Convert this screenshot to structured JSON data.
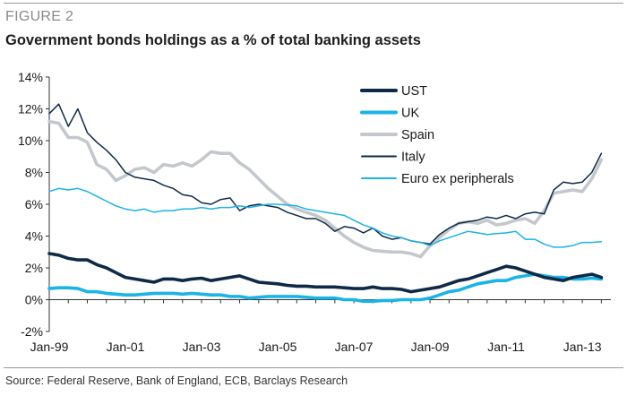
{
  "figure_label": "FIGURE 2",
  "source": "Source: Federal Reserve, Bank of England, ECB, Barclays Research",
  "colors": {
    "UST": "#0f2a47",
    "UK": "#1cb3e6",
    "Spain": "#c4c8cd",
    "Italy": "#0f2a47",
    "Euro ex peripherals": "#1cb3e6",
    "axis": "#333333"
  },
  "chart_data": {
    "type": "line",
    "title": "Government bonds holdings as a % of total banking assets",
    "xlabel": "",
    "ylabel": "",
    "xlim": [
      1999.0,
      2013.75
    ],
    "ylim": [
      -2,
      14
    ],
    "y_ticks": [
      -2,
      0,
      2,
      4,
      6,
      8,
      10,
      12,
      14
    ],
    "y_tick_labels": [
      "-2%",
      "0%",
      "2%",
      "4%",
      "6%",
      "8%",
      "10%",
      "12%",
      "14%"
    ],
    "x_ticks": [
      1999.0,
      2001.0,
      2003.0,
      2005.0,
      2007.0,
      2009.0,
      2011.0,
      2013.0
    ],
    "x_tick_labels": [
      "Jan-99",
      "Jan-01",
      "Jan-03",
      "Jan-05",
      "Jan-07",
      "Jan-09",
      "Jan-11",
      "Jan-13"
    ],
    "grid": false,
    "legend": "top-right",
    "series": [
      {
        "name": "Spain",
        "stroke_weight": "heavy",
        "points": [
          [
            1999.0,
            11.2
          ],
          [
            1999.25,
            11.1
          ],
          [
            1999.5,
            10.2
          ],
          [
            1999.75,
            10.2
          ],
          [
            2000.0,
            9.9
          ],
          [
            2000.25,
            8.5
          ],
          [
            2000.5,
            8.2
          ],
          [
            2000.75,
            7.5
          ],
          [
            2001.0,
            7.8
          ],
          [
            2001.25,
            8.2
          ],
          [
            2001.5,
            8.3
          ],
          [
            2001.75,
            8.0
          ],
          [
            2002.0,
            8.5
          ],
          [
            2002.25,
            8.4
          ],
          [
            2002.5,
            8.6
          ],
          [
            2002.75,
            8.4
          ],
          [
            2003.0,
            8.8
          ],
          [
            2003.25,
            9.3
          ],
          [
            2003.5,
            9.2
          ],
          [
            2003.75,
            9.2
          ],
          [
            2004.0,
            8.6
          ],
          [
            2004.25,
            8.2
          ],
          [
            2004.5,
            7.6
          ],
          [
            2004.75,
            7.0
          ],
          [
            2005.0,
            6.5
          ],
          [
            2005.25,
            6.0
          ],
          [
            2005.5,
            5.7
          ],
          [
            2005.75,
            5.5
          ],
          [
            2006.0,
            5.3
          ],
          [
            2006.25,
            5.0
          ],
          [
            2006.5,
            4.5
          ],
          [
            2006.75,
            4.0
          ],
          [
            2007.0,
            3.6
          ],
          [
            2007.25,
            3.3
          ],
          [
            2007.5,
            3.1
          ],
          [
            2007.75,
            3.05
          ],
          [
            2008.0,
            3.0
          ],
          [
            2008.25,
            3.0
          ],
          [
            2008.5,
            2.9
          ],
          [
            2008.75,
            2.7
          ],
          [
            2009.0,
            3.4
          ],
          [
            2009.25,
            3.9
          ],
          [
            2009.5,
            4.4
          ],
          [
            2009.75,
            4.8
          ],
          [
            2010.0,
            4.9
          ],
          [
            2010.25,
            4.8
          ],
          [
            2010.5,
            5.0
          ],
          [
            2010.75,
            4.7
          ],
          [
            2011.0,
            4.8
          ],
          [
            2011.25,
            5.0
          ],
          [
            2011.5,
            5.1
          ],
          [
            2011.75,
            4.8
          ],
          [
            2012.0,
            5.6
          ],
          [
            2012.25,
            6.7
          ],
          [
            2012.5,
            6.8
          ],
          [
            2012.75,
            6.9
          ],
          [
            2013.0,
            6.8
          ],
          [
            2013.25,
            7.6
          ],
          [
            2013.5,
            8.8
          ]
        ]
      },
      {
        "name": "Italy",
        "stroke_weight": "thin",
        "points": [
          [
            1999.0,
            11.7
          ],
          [
            1999.25,
            12.3
          ],
          [
            1999.5,
            10.9
          ],
          [
            1999.75,
            12.0
          ],
          [
            2000.0,
            10.5
          ],
          [
            2000.25,
            9.9
          ],
          [
            2000.5,
            9.4
          ],
          [
            2000.75,
            8.8
          ],
          [
            2001.0,
            8.0
          ],
          [
            2001.25,
            7.7
          ],
          [
            2001.5,
            7.6
          ],
          [
            2001.75,
            7.5
          ],
          [
            2002.0,
            7.2
          ],
          [
            2002.25,
            7.0
          ],
          [
            2002.5,
            6.6
          ],
          [
            2002.75,
            6.5
          ],
          [
            2003.0,
            6.1
          ],
          [
            2003.25,
            6.0
          ],
          [
            2003.5,
            6.3
          ],
          [
            2003.75,
            6.4
          ],
          [
            2004.0,
            5.6
          ],
          [
            2004.25,
            5.9
          ],
          [
            2004.5,
            6.0
          ],
          [
            2004.75,
            5.9
          ],
          [
            2005.0,
            5.8
          ],
          [
            2005.25,
            5.5
          ],
          [
            2005.5,
            5.3
          ],
          [
            2005.75,
            5.1
          ],
          [
            2006.0,
            5.1
          ],
          [
            2006.25,
            4.8
          ],
          [
            2006.5,
            4.3
          ],
          [
            2006.75,
            4.6
          ],
          [
            2007.0,
            4.5
          ],
          [
            2007.25,
            4.2
          ],
          [
            2007.5,
            4.5
          ],
          [
            2007.75,
            4.0
          ],
          [
            2008.0,
            3.8
          ],
          [
            2008.25,
            3.9
          ],
          [
            2008.5,
            3.7
          ],
          [
            2008.75,
            3.6
          ],
          [
            2009.0,
            3.5
          ],
          [
            2009.25,
            4.1
          ],
          [
            2009.5,
            4.5
          ],
          [
            2009.75,
            4.8
          ],
          [
            2010.0,
            4.9
          ],
          [
            2010.25,
            5.0
          ],
          [
            2010.5,
            5.2
          ],
          [
            2010.75,
            5.1
          ],
          [
            2011.0,
            5.3
          ],
          [
            2011.25,
            5.1
          ],
          [
            2011.5,
            5.4
          ],
          [
            2011.75,
            5.5
          ],
          [
            2012.0,
            5.4
          ],
          [
            2012.25,
            6.9
          ],
          [
            2012.5,
            7.4
          ],
          [
            2012.75,
            7.3
          ],
          [
            2013.0,
            7.4
          ],
          [
            2013.25,
            8.0
          ],
          [
            2013.5,
            9.2
          ]
        ]
      },
      {
        "name": "Euro ex peripherals",
        "stroke_weight": "thin",
        "points": [
          [
            1999.0,
            6.8
          ],
          [
            1999.25,
            7.0
          ],
          [
            1999.5,
            6.9
          ],
          [
            1999.75,
            7.0
          ],
          [
            2000.0,
            6.8
          ],
          [
            2000.25,
            6.5
          ],
          [
            2000.5,
            6.2
          ],
          [
            2000.75,
            5.9
          ],
          [
            2001.0,
            5.7
          ],
          [
            2001.25,
            5.6
          ],
          [
            2001.5,
            5.7
          ],
          [
            2001.75,
            5.5
          ],
          [
            2002.0,
            5.6
          ],
          [
            2002.25,
            5.6
          ],
          [
            2002.5,
            5.7
          ],
          [
            2002.75,
            5.7
          ],
          [
            2003.0,
            5.8
          ],
          [
            2003.25,
            5.7
          ],
          [
            2003.5,
            5.8
          ],
          [
            2003.75,
            5.8
          ],
          [
            2004.0,
            5.9
          ],
          [
            2004.25,
            5.8
          ],
          [
            2004.5,
            5.9
          ],
          [
            2004.75,
            6.0
          ],
          [
            2005.0,
            6.0
          ],
          [
            2005.25,
            5.95
          ],
          [
            2005.5,
            5.9
          ],
          [
            2005.75,
            5.7
          ],
          [
            2006.0,
            5.6
          ],
          [
            2006.25,
            5.5
          ],
          [
            2006.5,
            5.4
          ],
          [
            2006.75,
            5.3
          ],
          [
            2007.0,
            5.0
          ],
          [
            2007.25,
            4.7
          ],
          [
            2007.5,
            4.5
          ],
          [
            2007.75,
            4.2
          ],
          [
            2008.0,
            4.0
          ],
          [
            2008.25,
            3.9
          ],
          [
            2008.5,
            3.7
          ],
          [
            2008.75,
            3.6
          ],
          [
            2009.0,
            3.4
          ],
          [
            2009.25,
            3.7
          ],
          [
            2009.5,
            3.9
          ],
          [
            2009.75,
            4.1
          ],
          [
            2010.0,
            4.3
          ],
          [
            2010.25,
            4.2
          ],
          [
            2010.5,
            4.1
          ],
          [
            2010.75,
            4.15
          ],
          [
            2011.0,
            4.2
          ],
          [
            2011.25,
            4.3
          ],
          [
            2011.5,
            3.8
          ],
          [
            2011.75,
            3.8
          ],
          [
            2012.0,
            3.5
          ],
          [
            2012.25,
            3.3
          ],
          [
            2012.5,
            3.3
          ],
          [
            2012.75,
            3.4
          ],
          [
            2013.0,
            3.6
          ],
          [
            2013.25,
            3.6
          ],
          [
            2013.5,
            3.65
          ]
        ]
      },
      {
        "name": "UK",
        "stroke_weight": "heavy",
        "points": [
          [
            1999.0,
            0.7
          ],
          [
            1999.25,
            0.75
          ],
          [
            1999.5,
            0.75
          ],
          [
            1999.75,
            0.7
          ],
          [
            2000.0,
            0.5
          ],
          [
            2000.25,
            0.5
          ],
          [
            2000.5,
            0.4
          ],
          [
            2000.75,
            0.35
          ],
          [
            2001.0,
            0.3
          ],
          [
            2001.25,
            0.3
          ],
          [
            2001.5,
            0.35
          ],
          [
            2001.75,
            0.4
          ],
          [
            2002.0,
            0.4
          ],
          [
            2002.25,
            0.4
          ],
          [
            2002.5,
            0.35
          ],
          [
            2002.75,
            0.4
          ],
          [
            2003.0,
            0.35
          ],
          [
            2003.25,
            0.3
          ],
          [
            2003.5,
            0.3
          ],
          [
            2003.75,
            0.2
          ],
          [
            2004.0,
            0.2
          ],
          [
            2004.25,
            0.1
          ],
          [
            2004.5,
            0.15
          ],
          [
            2004.75,
            0.2
          ],
          [
            2005.0,
            0.2
          ],
          [
            2005.25,
            0.2
          ],
          [
            2005.5,
            0.2
          ],
          [
            2005.75,
            0.15
          ],
          [
            2006.0,
            0.1
          ],
          [
            2006.25,
            0.1
          ],
          [
            2006.5,
            0.1
          ],
          [
            2006.75,
            0.0
          ],
          [
            2007.0,
            0.0
          ],
          [
            2007.25,
            -0.1
          ],
          [
            2007.5,
            -0.1
          ],
          [
            2007.75,
            -0.05
          ],
          [
            2008.0,
            -0.05
          ],
          [
            2008.25,
            0.0
          ],
          [
            2008.5,
            0.0
          ],
          [
            2008.75,
            0.0
          ],
          [
            2009.0,
            0.1
          ],
          [
            2009.25,
            0.3
          ],
          [
            2009.5,
            0.5
          ],
          [
            2009.75,
            0.6
          ],
          [
            2010.0,
            0.8
          ],
          [
            2010.25,
            1.0
          ],
          [
            2010.5,
            1.1
          ],
          [
            2010.75,
            1.2
          ],
          [
            2011.0,
            1.2
          ],
          [
            2011.25,
            1.4
          ],
          [
            2011.5,
            1.5
          ],
          [
            2011.75,
            1.6
          ],
          [
            2012.0,
            1.5
          ],
          [
            2012.25,
            1.4
          ],
          [
            2012.5,
            1.4
          ],
          [
            2012.75,
            1.3
          ],
          [
            2013.0,
            1.3
          ],
          [
            2013.25,
            1.35
          ],
          [
            2013.5,
            1.3
          ]
        ]
      },
      {
        "name": "UST",
        "stroke_weight": "heavy",
        "points": [
          [
            1999.0,
            2.9
          ],
          [
            1999.25,
            2.8
          ],
          [
            1999.5,
            2.6
          ],
          [
            1999.75,
            2.5
          ],
          [
            2000.0,
            2.5
          ],
          [
            2000.25,
            2.2
          ],
          [
            2000.5,
            2.0
          ],
          [
            2000.75,
            1.7
          ],
          [
            2001.0,
            1.4
          ],
          [
            2001.25,
            1.3
          ],
          [
            2001.5,
            1.2
          ],
          [
            2001.75,
            1.1
          ],
          [
            2002.0,
            1.3
          ],
          [
            2002.25,
            1.3
          ],
          [
            2002.5,
            1.2
          ],
          [
            2002.75,
            1.3
          ],
          [
            2003.0,
            1.35
          ],
          [
            2003.25,
            1.2
          ],
          [
            2003.5,
            1.3
          ],
          [
            2003.75,
            1.4
          ],
          [
            2004.0,
            1.5
          ],
          [
            2004.25,
            1.3
          ],
          [
            2004.5,
            1.1
          ],
          [
            2004.75,
            1.05
          ],
          [
            2005.0,
            1.0
          ],
          [
            2005.25,
            0.9
          ],
          [
            2005.5,
            0.85
          ],
          [
            2005.75,
            0.85
          ],
          [
            2006.0,
            0.8
          ],
          [
            2006.25,
            0.8
          ],
          [
            2006.5,
            0.8
          ],
          [
            2006.75,
            0.75
          ],
          [
            2007.0,
            0.7
          ],
          [
            2007.25,
            0.7
          ],
          [
            2007.5,
            0.8
          ],
          [
            2007.75,
            0.7
          ],
          [
            2008.0,
            0.7
          ],
          [
            2008.25,
            0.65
          ],
          [
            2008.5,
            0.5
          ],
          [
            2008.75,
            0.6
          ],
          [
            2009.0,
            0.7
          ],
          [
            2009.25,
            0.8
          ],
          [
            2009.5,
            1.0
          ],
          [
            2009.75,
            1.2
          ],
          [
            2010.0,
            1.3
          ],
          [
            2010.25,
            1.5
          ],
          [
            2010.5,
            1.7
          ],
          [
            2010.75,
            1.9
          ],
          [
            2011.0,
            2.1
          ],
          [
            2011.25,
            2.0
          ],
          [
            2011.5,
            1.8
          ],
          [
            2011.75,
            1.6
          ],
          [
            2012.0,
            1.4
          ],
          [
            2012.25,
            1.3
          ],
          [
            2012.5,
            1.2
          ],
          [
            2012.75,
            1.4
          ],
          [
            2013.0,
            1.5
          ],
          [
            2013.25,
            1.6
          ],
          [
            2013.5,
            1.4
          ]
        ]
      }
    ],
    "legend_order": [
      "UST",
      "UK",
      "Spain",
      "Italy",
      "Euro ex peripherals"
    ]
  }
}
